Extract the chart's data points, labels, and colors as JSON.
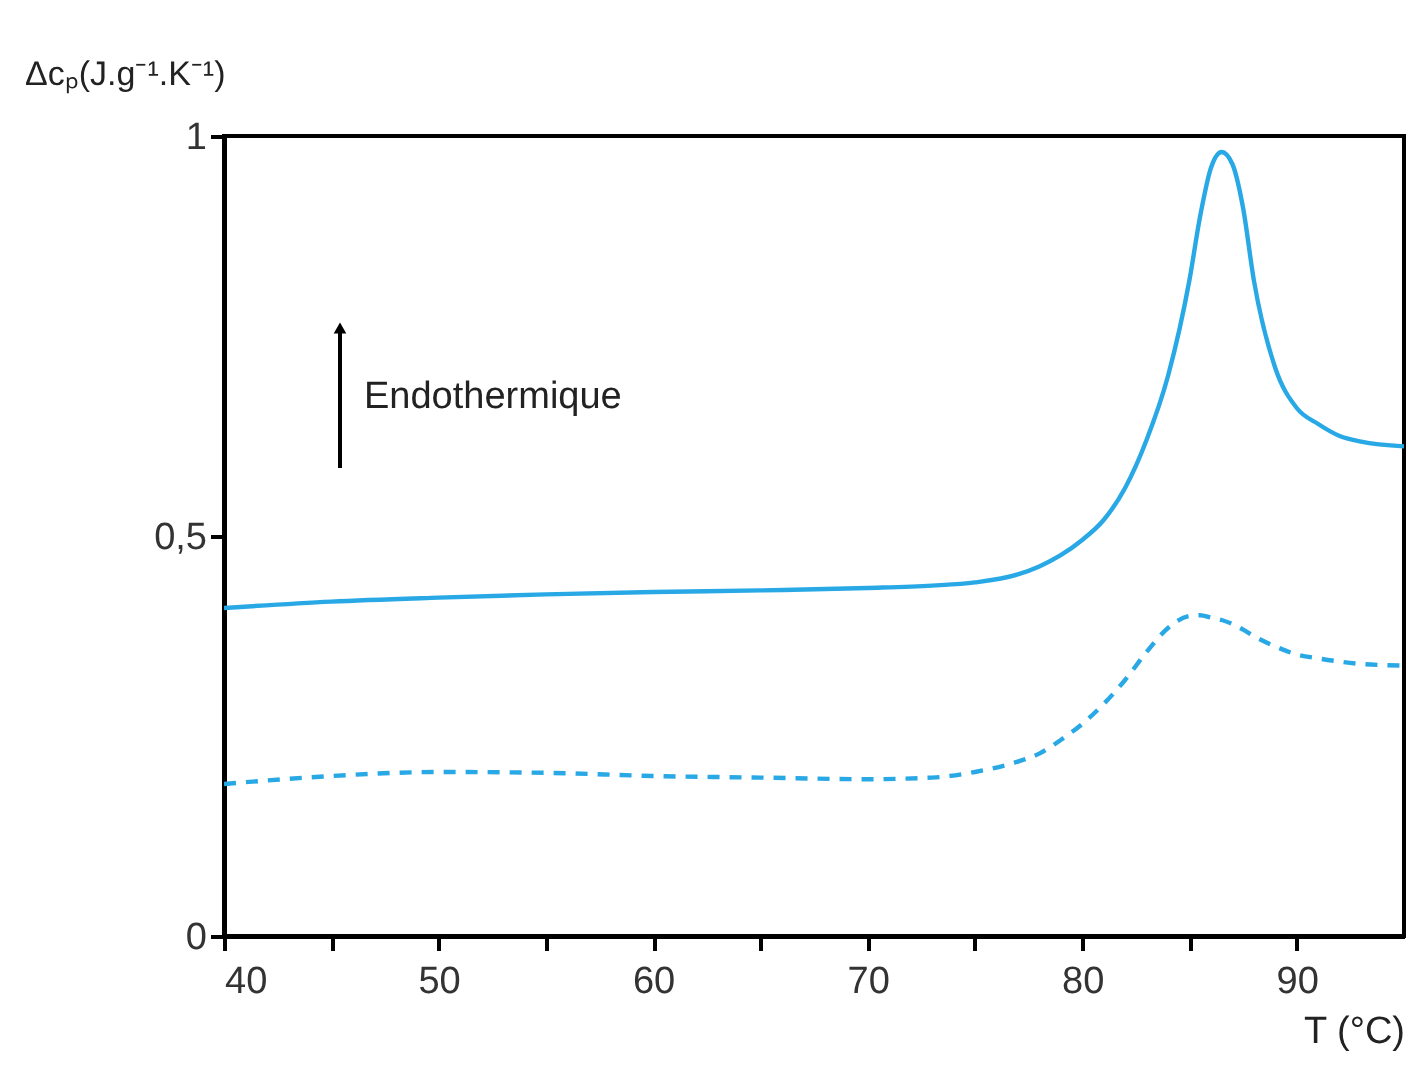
{
  "chart_data": {
    "type": "line",
    "ylabel": "Δcₚ(J.g⁻¹.K⁻¹)",
    "xlabel": "T (°C)",
    "annotations": [
      "Endothermique"
    ],
    "x": [
      40,
      45,
      50,
      55,
      60,
      65,
      70,
      73,
      75,
      77,
      78,
      79,
      80,
      81,
      82,
      83,
      84,
      85,
      85.5,
      86,
      86.5,
      87,
      87.5,
      88,
      89,
      90,
      91,
      92,
      93,
      95
    ],
    "series": [
      {
        "color": "#29a8e6",
        "line_style": "solid",
        "values": [
          0.41,
          0.418,
          0.423,
          0.427,
          0.43,
          0.432,
          0.435,
          0.438,
          0.442,
          0.452,
          0.462,
          0.476,
          0.495,
          0.52,
          0.56,
          0.62,
          0.7,
          0.82,
          0.9,
          0.96,
          0.98,
          0.965,
          0.91,
          0.82,
          0.71,
          0.66,
          0.64,
          0.625,
          0.618,
          0.612
        ]
      },
      {
        "color": "#29a8e6",
        "line_style": "dashed",
        "values": [
          0.19,
          0.2,
          0.205,
          0.204,
          0.2,
          0.198,
          0.196,
          0.198,
          0.205,
          0.218,
          0.228,
          0.245,
          0.265,
          0.29,
          0.32,
          0.355,
          0.385,
          0.4,
          0.401,
          0.398,
          0.395,
          0.39,
          0.383,
          0.375,
          0.362,
          0.352,
          0.347,
          0.343,
          0.34,
          0.338
        ]
      }
    ],
    "xlim": [
      40,
      95
    ],
    "ylim": [
      0,
      1
    ],
    "xticks": [
      40,
      {
        "value": 45,
        "label": null
      },
      50,
      {
        "value": 55,
        "label": null
      },
      60,
      {
        "value": 65,
        "label": null
      },
      70,
      {
        "value": 75,
        "label": null
      },
      80,
      {
        "value": 85,
        "label": null
      },
      90
    ],
    "yticks": [
      0,
      {
        "value": 0.5,
        "label": "0,5"
      },
      1
    ],
    "grid": false
  }
}
